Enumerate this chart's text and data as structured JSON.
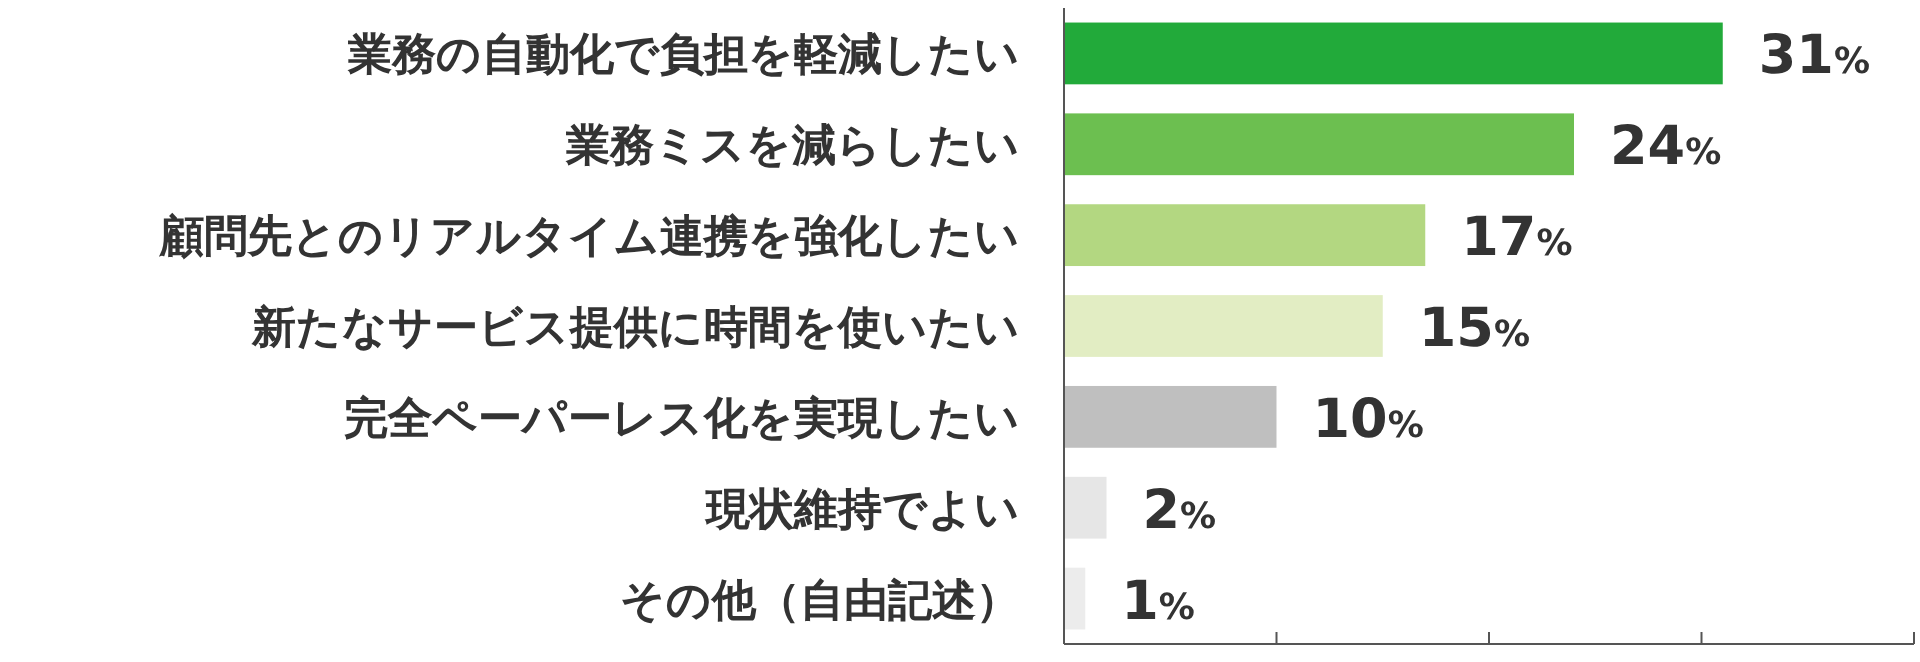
{
  "chart_data": {
    "type": "bar",
    "orientation": "horizontal",
    "categories": [
      "業務の自動化で負担を軽減したい",
      "業務ミスを減らしたい",
      "顧問先とのリアルタイム連携を強化したい",
      "新たなサービス提供に時間を使いたい",
      "完全ペーパーレス化を実現したい",
      "現状維持でよい",
      "その他（自由記述）"
    ],
    "values": [
      31,
      24,
      17,
      15,
      10,
      2,
      1
    ],
    "colors": [
      "#22aa3a",
      "#6cbf50",
      "#b3d781",
      "#e2edc3",
      "#bfbfbf",
      "#e6e6e6",
      "#ececec"
    ],
    "value_labels": [
      "31%",
      "24%",
      "17%",
      "15%",
      "10%",
      "2%",
      "1%"
    ],
    "xlim": [
      0,
      40
    ],
    "xticks": [
      {
        "value": 0,
        "label": null
      },
      {
        "value": 10,
        "label": null
      },
      {
        "value": 20,
        "label": null
      },
      {
        "value": 30,
        "label": null
      },
      {
        "value": 40,
        "label": null
      }
    ],
    "tick_labels": "y"
  }
}
